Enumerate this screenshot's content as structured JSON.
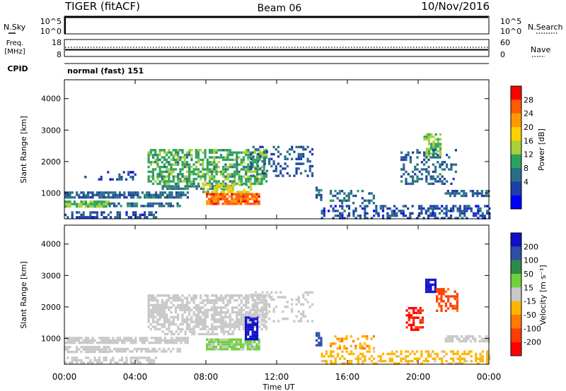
{
  "header": {
    "radar": "TIGER (fitACF)",
    "beam": "Beam 06",
    "date": "10/Nov/2016"
  },
  "top_panels": {
    "nsky_label": "N.Sky",
    "nsky_ticks": [
      "10^5",
      "10^0"
    ],
    "nsearch_label": "N.Search",
    "nsearch_ticks": [
      "10^5",
      "10^0"
    ],
    "freq_label_1": "Freq.",
    "freq_label_2": "[MHz]",
    "freq_ticks": [
      "18",
      "8"
    ],
    "nave_label": "Nave",
    "nave_ticks": [
      "60",
      "0"
    ],
    "cpid_label": "CPID",
    "cpid_text": "normal (fast) 151"
  },
  "axes": {
    "ylabel": "Slant Range [km]",
    "yticks": [
      "4000",
      "3000",
      "2000",
      "1000"
    ],
    "xlabel": "Time UT",
    "xticks": [
      "00:00",
      "04:00",
      "08:00",
      "12:00",
      "16:00",
      "20:00",
      "00:00"
    ]
  },
  "colorbars": {
    "power": {
      "label": "Power [dB]",
      "ticks": [
        "28",
        "24",
        "20",
        "16",
        "12",
        "8",
        "4"
      ],
      "colors": [
        "#ff0000",
        "#ff5a00",
        "#ff9900",
        "#ffd000",
        "#a8d038",
        "#2ca25f",
        "#2b6e87",
        "#1f3fa8",
        "#0000ff"
      ]
    },
    "velocity": {
      "label": "Velocity [m s⁻¹]",
      "ticks": [
        "200",
        "100",
        "50",
        "15",
        "-15",
        "-50",
        "-100",
        "-200"
      ],
      "colors": [
        "#1010c8",
        "#2e4ea8",
        "#2f8a4a",
        "#6fd13a",
        "#c8c8c8",
        "#ffb400",
        "#ff7a00",
        "#ff3c00",
        "#ff0000"
      ]
    }
  },
  "chart_data": [
    {
      "type": "heatmap",
      "name": "power",
      "xlabel": "Time UT",
      "ylabel": "Slant Range [km]",
      "xlim": [
        0,
        24
      ],
      "ylim": [
        180,
        4600
      ],
      "colorbar_label": "Power [dB]",
      "colorbar_range": [
        0,
        32
      ],
      "blobs": [
        {
          "t0": 0.0,
          "t1": 5.2,
          "r0": 200,
          "r1": 420,
          "v": 6,
          "density": 0.55
        },
        {
          "t0": 0.0,
          "t1": 2.5,
          "r0": 550,
          "r1": 760,
          "v": 14,
          "density": 0.85
        },
        {
          "t0": 2.5,
          "t1": 6.5,
          "r0": 560,
          "r1": 700,
          "v": 9,
          "density": 0.7
        },
        {
          "t0": 0.0,
          "t1": 7.0,
          "r0": 850,
          "r1": 1050,
          "v": 8,
          "density": 0.8
        },
        {
          "t0": 5.5,
          "t1": 9.5,
          "r0": 1100,
          "r1": 1250,
          "v": 10,
          "density": 0.6
        },
        {
          "t0": 4.7,
          "t1": 11.5,
          "r0": 1280,
          "r1": 2400,
          "v": 13,
          "density": 0.65
        },
        {
          "t0": 8.0,
          "t1": 11.0,
          "r0": 620,
          "r1": 1000,
          "v": 26,
          "density": 0.9
        },
        {
          "t0": 7.8,
          "t1": 10.6,
          "r0": 1050,
          "r1": 1300,
          "v": 16,
          "density": 0.6
        },
        {
          "t0": 10.5,
          "t1": 14.0,
          "r0": 1500,
          "r1": 2500,
          "v": 7,
          "density": 0.3
        },
        {
          "t0": 1.0,
          "t1": 4.0,
          "r0": 1450,
          "r1": 1700,
          "v": 6,
          "density": 0.25
        },
        {
          "t0": 14.2,
          "t1": 14.6,
          "r0": 800,
          "r1": 1200,
          "v": 8,
          "density": 0.55
        },
        {
          "t0": 15.0,
          "t1": 17.5,
          "r0": 700,
          "r1": 1100,
          "v": 9,
          "density": 0.35
        },
        {
          "t0": 14.5,
          "t1": 24.0,
          "r0": 200,
          "r1": 620,
          "v": 6,
          "density": 0.45
        },
        {
          "t0": 20.3,
          "t1": 21.3,
          "r0": 2200,
          "r1": 2900,
          "v": 15,
          "density": 0.7
        },
        {
          "t0": 19.0,
          "t1": 22.2,
          "r0": 1300,
          "r1": 2400,
          "v": 8,
          "density": 0.3
        },
        {
          "t0": 21.5,
          "t1": 24.0,
          "r0": 900,
          "r1": 1100,
          "v": 8,
          "density": 0.65
        }
      ]
    },
    {
      "type": "heatmap",
      "name": "velocity",
      "xlabel": "Time UT",
      "ylabel": "Slant Range [km]",
      "xlim": [
        0,
        24
      ],
      "ylim": [
        180,
        4600
      ],
      "colorbar_label": "Velocity [m s⁻¹]",
      "colorbar_range": [
        -250,
        250
      ],
      "blobs": [
        {
          "t0": 0.0,
          "t1": 5.2,
          "r0": 200,
          "r1": 420,
          "v": 0,
          "density": 0.55
        },
        {
          "t0": 0.0,
          "t1": 2.5,
          "r0": 550,
          "r1": 760,
          "v": -5,
          "density": 0.85
        },
        {
          "t0": 2.5,
          "t1": 6.5,
          "r0": 560,
          "r1": 700,
          "v": 0,
          "density": 0.7
        },
        {
          "t0": 0.0,
          "t1": 7.0,
          "r0": 850,
          "r1": 1050,
          "v": 0,
          "density": 0.8
        },
        {
          "t0": 5.5,
          "t1": 9.5,
          "r0": 1100,
          "r1": 1250,
          "v": 0,
          "density": 0.6
        },
        {
          "t0": 4.7,
          "t1": 11.5,
          "r0": 1280,
          "r1": 2400,
          "v": 0,
          "density": 0.65
        },
        {
          "t0": 8.0,
          "t1": 11.0,
          "r0": 620,
          "r1": 1000,
          "v": 35,
          "density": 0.9
        },
        {
          "t0": 10.2,
          "t1": 10.9,
          "r0": 1000,
          "r1": 1700,
          "v": 210,
          "density": 0.9
        },
        {
          "t0": 10.5,
          "t1": 14.0,
          "r0": 1500,
          "r1": 2500,
          "v": 0,
          "density": 0.3
        },
        {
          "t0": 14.2,
          "t1": 14.5,
          "r0": 800,
          "r1": 1200,
          "v": 160,
          "density": 0.7
        },
        {
          "t0": 15.0,
          "t1": 17.5,
          "r0": 700,
          "r1": 1100,
          "v": -80,
          "density": 0.35
        },
        {
          "t0": 14.5,
          "t1": 24.0,
          "r0": 200,
          "r1": 620,
          "v": -40,
          "density": 0.45
        },
        {
          "t0": 20.4,
          "t1": 21.0,
          "r0": 2500,
          "r1": 2900,
          "v": 220,
          "density": 0.8
        },
        {
          "t0": 21.0,
          "t1": 22.2,
          "r0": 1900,
          "r1": 2600,
          "v": -150,
          "density": 0.5
        },
        {
          "t0": 19.3,
          "t1": 20.3,
          "r0": 1300,
          "r1": 2000,
          "v": -200,
          "density": 0.55
        },
        {
          "t0": 21.5,
          "t1": 24.0,
          "r0": 900,
          "r1": 1100,
          "v": 0,
          "density": 0.65
        }
      ]
    }
  ]
}
